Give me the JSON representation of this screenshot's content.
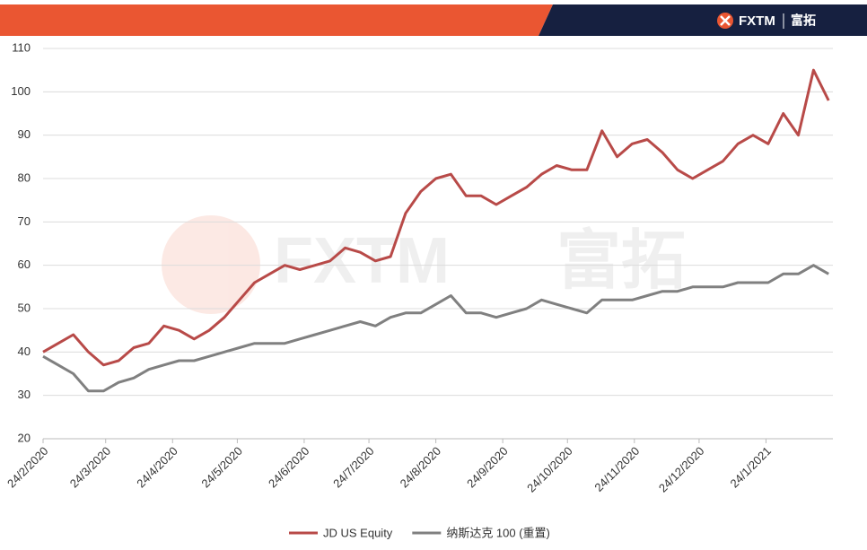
{
  "brand": {
    "logo": "FXTM",
    "logo_cn": "富拓"
  },
  "chart_data": {
    "type": "line",
    "x": [
      "24/2/2020",
      "2/3/2020",
      "9/3/2020",
      "16/3/2020",
      "23/3/2020",
      "30/3/2020",
      "6/4/2020",
      "13/4/2020",
      "20/4/2020",
      "27/4/2020",
      "4/5/2020",
      "11/5/2020",
      "18/5/2020",
      "25/5/2020",
      "1/6/2020",
      "8/6/2020",
      "15/6/2020",
      "22/6/2020",
      "29/6/2020",
      "6/7/2020",
      "13/7/2020",
      "20/7/2020",
      "27/7/2020",
      "3/8/2020",
      "10/8/2020",
      "17/8/2020",
      "24/8/2020",
      "31/8/2020",
      "7/9/2020",
      "14/9/2020",
      "21/9/2020",
      "28/9/2020",
      "5/10/2020",
      "12/10/2020",
      "19/10/2020",
      "26/10/2020",
      "2/11/2020",
      "9/11/2020",
      "16/11/2020",
      "23/11/2020",
      "30/11/2020",
      "7/12/2020",
      "14/12/2020",
      "21/12/2020",
      "28/12/2020",
      "4/1/2021",
      "11/1/2021",
      "18/1/2021",
      "25/1/2021",
      "1/2/2021",
      "8/2/2021",
      "15/2/2021",
      "22/2/2021"
    ],
    "series": [
      {
        "name": "JD US Equity",
        "color": "#b84a48",
        "values": [
          40,
          42,
          44,
          40,
          37,
          38,
          41,
          42,
          46,
          45,
          43,
          45,
          48,
          52,
          56,
          58,
          60,
          59,
          60,
          61,
          64,
          63,
          61,
          62,
          72,
          77,
          80,
          81,
          76,
          76,
          74,
          76,
          78,
          81,
          83,
          82,
          82,
          91,
          85,
          88,
          89,
          86,
          82,
          80,
          82,
          84,
          88,
          90,
          88,
          95,
          90,
          105,
          98
        ]
      },
      {
        "name": "纳斯达克 100 (重置)",
        "color": "#808080",
        "values": [
          39,
          37,
          35,
          31,
          31,
          33,
          34,
          36,
          37,
          38,
          38,
          39,
          40,
          41,
          42,
          42,
          42,
          43,
          44,
          45,
          46,
          47,
          46,
          48,
          49,
          49,
          51,
          53,
          49,
          49,
          48,
          49,
          50,
          52,
          51,
          50,
          49,
          52,
          52,
          52,
          53,
          54,
          54,
          55,
          55,
          55,
          56,
          56,
          56,
          58,
          58,
          60,
          58
        ]
      }
    ],
    "xlim": [
      "24/2/2020",
      "24/2/2021"
    ],
    "xticks": [
      "24/2/2020",
      "24/3/2020",
      "24/4/2020",
      "24/5/2020",
      "24/6/2020",
      "24/7/2020",
      "24/8/2020",
      "24/9/2020",
      "24/10/2020",
      "24/11/2020",
      "24/12/2020",
      "24/1/2021"
    ],
    "ylim": [
      20,
      110
    ],
    "yticks": [
      20,
      30,
      40,
      50,
      60,
      70,
      80,
      90,
      100,
      110
    ],
    "grid": true,
    "legend": "bottom"
  }
}
